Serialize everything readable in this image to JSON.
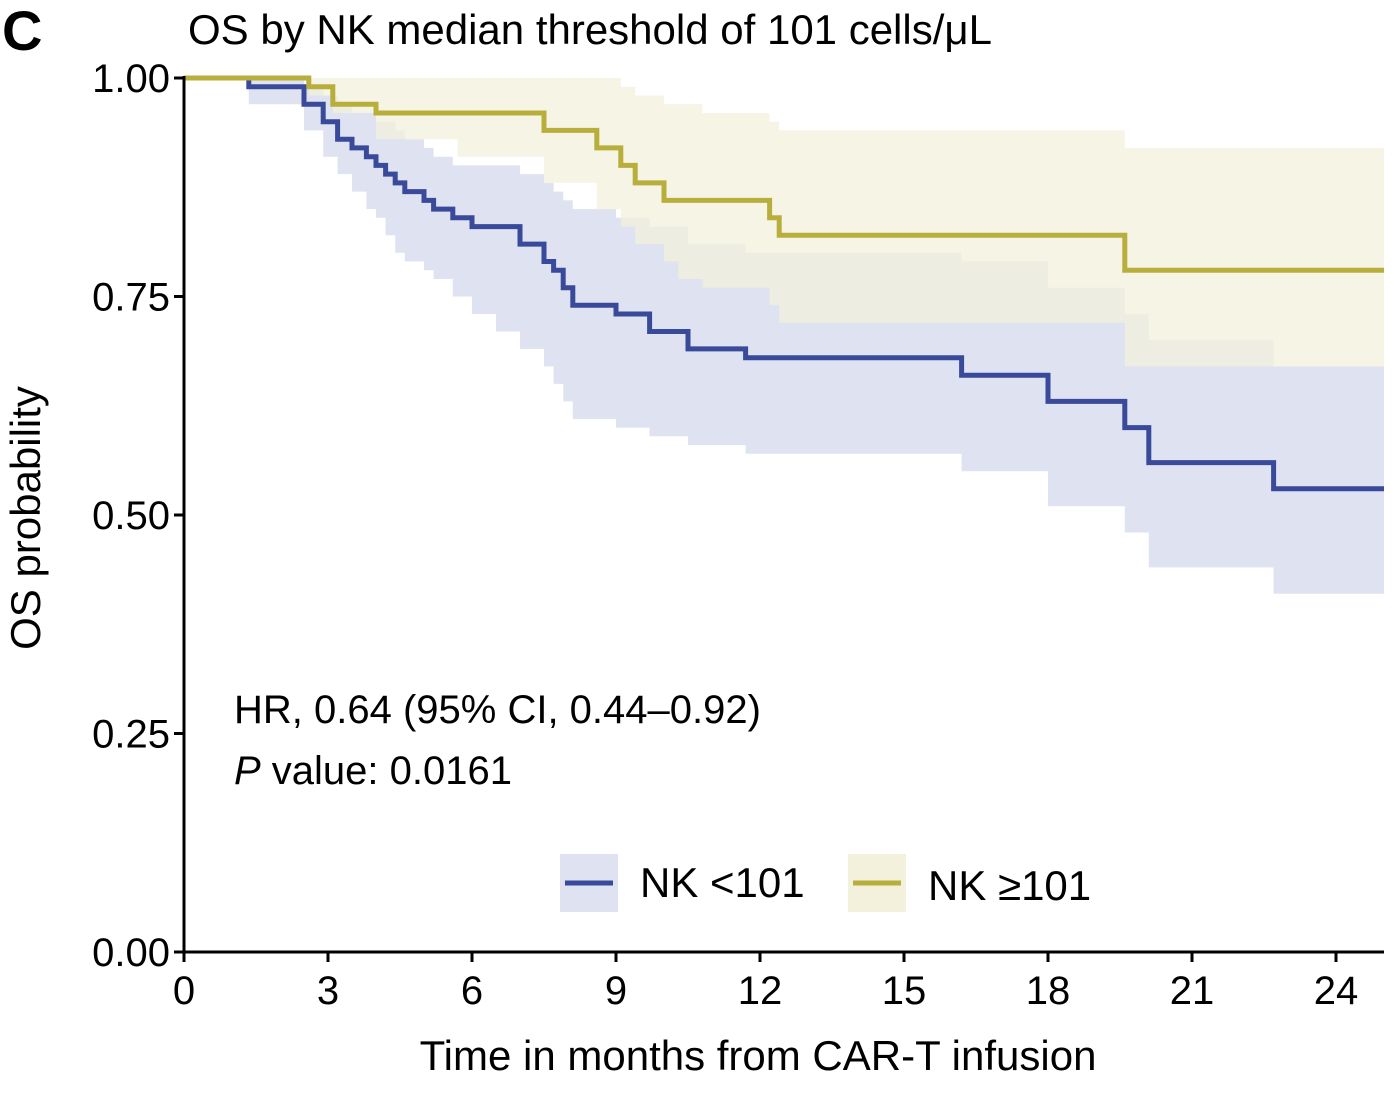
{
  "panel_label": "C",
  "annotation": {
    "hr": "HR, 0.64 (95% CI, 0.44–0.92)",
    "p_label": "P",
    "p_rest": " value: 0.0161"
  },
  "chart_data": {
    "type": "line",
    "subtype": "kaplan-meier step curve with 95% CI bands",
    "title": "OS by NK median threshold of 101 cells/μL",
    "xlabel": "Time in months from CAR-T infusion",
    "ylabel": "OS probability",
    "xlim": [
      0,
      25
    ],
    "ylim": [
      0,
      1
    ],
    "x_ticks": [
      0,
      3,
      6,
      9,
      12,
      15,
      18,
      21,
      24
    ],
    "x_tick_labels": [
      "0",
      "3",
      "6",
      "9",
      "12",
      "15",
      "18",
      "21",
      "24"
    ],
    "y_ticks": [
      0,
      0.25,
      0.5,
      0.75,
      1.0
    ],
    "y_tick_labels": [
      "0.00",
      "0.25",
      "0.50",
      "0.75",
      "1.00"
    ],
    "grid": false,
    "legend_position": "bottom-right",
    "series": [
      {
        "name": "NK <101",
        "color": "#3a4a9a",
        "band_color": "#dfe2f0",
        "x": [
          0,
          1.35,
          2.5,
          2.9,
          3.2,
          3.5,
          3.8,
          4.0,
          4.2,
          4.4,
          4.6,
          5.0,
          5.2,
          5.6,
          6.0,
          6.5,
          7.0,
          7.5,
          7.7,
          7.9,
          8.1,
          9.0,
          9.7,
          10.5,
          11.7,
          16.2,
          18.0,
          19.6,
          20.1,
          22.7,
          25.0
        ],
        "y": [
          1.0,
          0.99,
          0.97,
          0.95,
          0.93,
          0.92,
          0.91,
          0.9,
          0.89,
          0.88,
          0.87,
          0.86,
          0.85,
          0.84,
          0.83,
          0.83,
          0.81,
          0.79,
          0.78,
          0.76,
          0.74,
          0.73,
          0.71,
          0.69,
          0.68,
          0.66,
          0.63,
          0.6,
          0.56,
          0.53,
          0.53
        ],
        "ci_lower": [
          1.0,
          0.97,
          0.94,
          0.91,
          0.89,
          0.87,
          0.85,
          0.84,
          0.82,
          0.8,
          0.79,
          0.78,
          0.77,
          0.75,
          0.73,
          0.71,
          0.69,
          0.67,
          0.65,
          0.63,
          0.61,
          0.6,
          0.59,
          0.58,
          0.57,
          0.55,
          0.51,
          0.48,
          0.44,
          0.41,
          0.41
        ],
        "ci_upper": [
          1.0,
          1.0,
          0.99,
          0.98,
          0.97,
          0.96,
          0.96,
          0.95,
          0.95,
          0.94,
          0.93,
          0.92,
          0.91,
          0.9,
          0.9,
          0.9,
          0.89,
          0.88,
          0.87,
          0.86,
          0.85,
          0.84,
          0.83,
          0.81,
          0.8,
          0.79,
          0.76,
          0.73,
          0.7,
          0.67,
          0.67
        ]
      },
      {
        "name": "NK ≥101",
        "color": "#b8ae3c",
        "band_color": "#f3f0dc",
        "x": [
          0,
          2.6,
          3.1,
          4.0,
          5.7,
          7.5,
          8.6,
          9.1,
          9.4,
          10.0,
          10.3,
          10.8,
          12.2,
          12.4,
          19.6,
          25.0
        ],
        "y": [
          1.0,
          0.99,
          0.97,
          0.96,
          0.96,
          0.94,
          0.92,
          0.9,
          0.88,
          0.86,
          0.86,
          0.86,
          0.84,
          0.82,
          0.78,
          0.78
        ],
        "ci_lower": [
          1.0,
          0.98,
          0.96,
          0.93,
          0.91,
          0.88,
          0.85,
          0.83,
          0.81,
          0.79,
          0.77,
          0.76,
          0.74,
          0.72,
          0.67,
          0.67
        ],
        "ci_upper": [
          1.0,
          1.0,
          1.0,
          1.0,
          1.0,
          1.0,
          1.0,
          0.99,
          0.98,
          0.97,
          0.97,
          0.96,
          0.95,
          0.94,
          0.92,
          0.92
        ]
      }
    ]
  }
}
